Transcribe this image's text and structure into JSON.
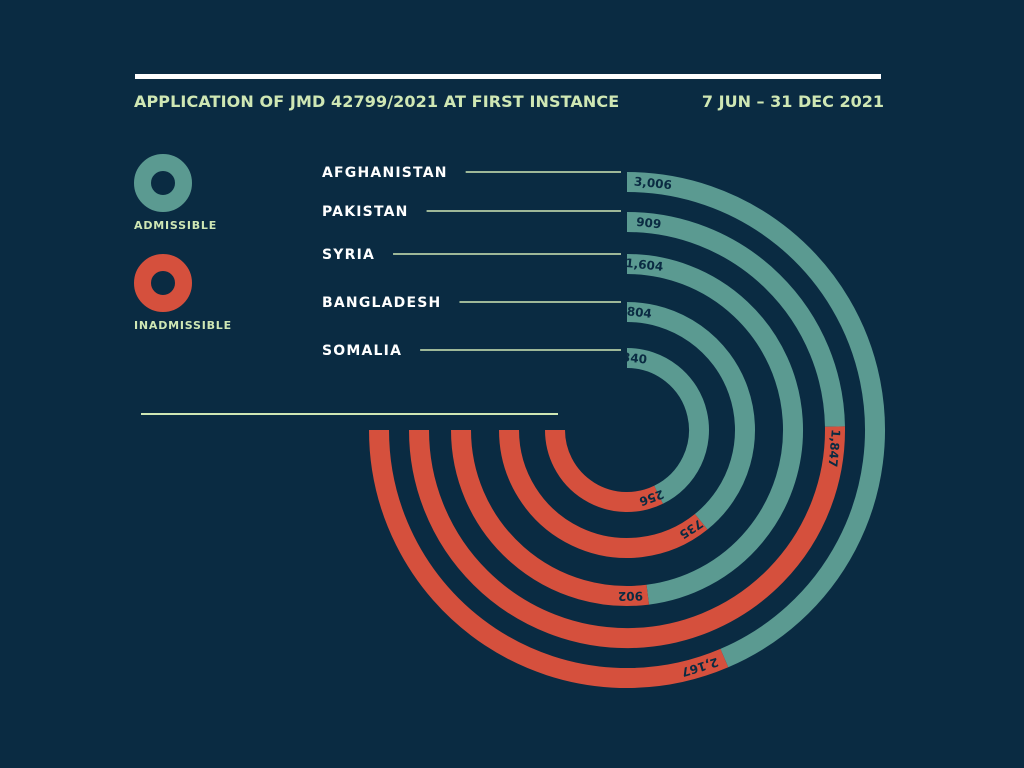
{
  "header": {
    "title": "APPLICATION OF JMD 42799/2021 AT FIRST INSTANCE",
    "date_range": "7 JUN – 31 DEC 2021"
  },
  "legend": [
    {
      "label": "ADMISSIBLE",
      "color": "#5b9a91"
    },
    {
      "label": "INADMISSIBLE",
      "color": "#d5503d"
    }
  ],
  "colors": {
    "background": "#0a2b42",
    "text": "#cfe7b4",
    "country_text": "#ffffff",
    "value_text": "#0a2b42"
  },
  "chart_data": {
    "type": "radial_stacked_bar",
    "categories": [
      "AFGHANISTAN",
      "PAKISTAN",
      "SYRIA",
      "BANGLADESH",
      "SOMALIA"
    ],
    "series": [
      {
        "name": "ADMISSIBLE",
        "values": [
          3006,
          909,
          1604,
          804,
          340
        ],
        "labels": [
          "3,006",
          "909",
          "1,604",
          "804",
          "340"
        ]
      },
      {
        "name": "INADMISSIBLE",
        "values": [
          2167,
          1847,
          902,
          735,
          256
        ],
        "labels": [
          "2,167",
          "1,847",
          "902",
          "735",
          "256"
        ]
      }
    ]
  }
}
